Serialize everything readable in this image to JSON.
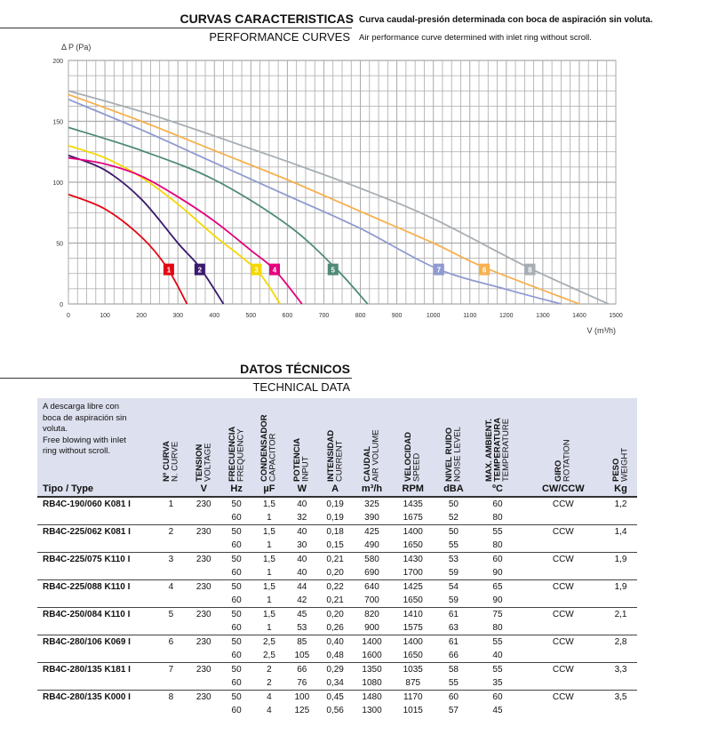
{
  "header": {
    "title_es": "CURVAS CARACTERISTICAS",
    "subtitle_es": "Curva caudal-presión determinada con boca de aspiración sin voluta.",
    "title_en": "PERFORMANCE CURVES",
    "subtitle_en": "Air performance curve determined with inlet ring without scroll."
  },
  "chart_data": {
    "type": "line",
    "xlabel": "V (m³/h)",
    "ylabel": "Δ P (Pa)",
    "xlim": [
      0,
      1500
    ],
    "ylim": [
      0,
      200
    ],
    "xticks": [
      0,
      100,
      200,
      300,
      400,
      500,
      600,
      700,
      800,
      900,
      1000,
      1100,
      1200,
      1300,
      1400,
      1500
    ],
    "yticks": [
      0,
      50,
      100,
      150,
      200
    ],
    "grid": true,
    "series": [
      {
        "name": "1",
        "color": "#e30613",
        "x": [
          0,
          100,
          200,
          270,
          325
        ],
        "y": [
          90,
          78,
          55,
          30,
          0
        ]
      },
      {
        "name": "2",
        "color": "#3c1a6e",
        "x": [
          0,
          100,
          200,
          300,
          360,
          425
        ],
        "y": [
          122,
          110,
          86,
          50,
          30,
          0
        ]
      },
      {
        "name": "3",
        "color": "#f5d800",
        "x": [
          0,
          100,
          200,
          300,
          400,
          515,
          580
        ],
        "y": [
          130,
          120,
          104,
          82,
          56,
          28,
          0
        ]
      },
      {
        "name": "4",
        "color": "#e5007e",
        "x": [
          0,
          100,
          200,
          300,
          400,
          500,
          565,
          640
        ],
        "y": [
          120,
          115,
          105,
          88,
          68,
          44,
          28,
          0
        ]
      },
      {
        "name": "5",
        "color": "#4f8a78",
        "x": [
          0,
          200,
          400,
          600,
          730,
          820
        ],
        "y": [
          145,
          126,
          102,
          65,
          30,
          0
        ]
      },
      {
        "name": "6",
        "color": "#f7b150",
        "x": [
          0,
          200,
          400,
          600,
          800,
          1000,
          1140,
          1400
        ],
        "y": [
          172,
          150,
          126,
          102,
          76,
          50,
          30,
          0
        ]
      },
      {
        "name": "7",
        "color": "#8f9ad0",
        "x": [
          0,
          200,
          400,
          600,
          800,
          1010,
          1200,
          1350
        ],
        "y": [
          168,
          143,
          116,
          89,
          62,
          29,
          12,
          0
        ]
      },
      {
        "name": "8",
        "color": "#a6aeb4",
        "x": [
          0,
          200,
          400,
          600,
          800,
          1000,
          1260,
          1480
        ],
        "y": [
          175,
          158,
          138,
          117,
          95,
          70,
          30,
          0
        ]
      }
    ],
    "label_points": [
      [
        275,
        28
      ],
      [
        360,
        28
      ],
      [
        515,
        28
      ],
      [
        565,
        28
      ],
      [
        725,
        28
      ],
      [
        1140,
        28
      ],
      [
        1015,
        28
      ],
      [
        1265,
        28
      ]
    ]
  },
  "tech": {
    "title_es": "DATOS TÉCNICOS",
    "title_en": "TECHNICAL DATA",
    "note": [
      "A descarga libre con",
      "boca de aspiración sin",
      "voluta.",
      "Free blowing with inlet",
      "ring without scroll."
    ],
    "columns": [
      {
        "es": "Nº CURVA",
        "en": "N. CURVE",
        "unit": ""
      },
      {
        "es": "TENSION",
        "en": "VOLTAGE",
        "unit": "V"
      },
      {
        "es": "FRECUENCIA",
        "en": "FREQUENCY",
        "unit": "Hz"
      },
      {
        "es": "CONDENSADOR",
        "en": "CAPACITOR",
        "unit": "µF"
      },
      {
        "es": "POTENCIA",
        "en": "INPUT",
        "unit": "W"
      },
      {
        "es": "INTENSIDAD",
        "en": "CURRENT",
        "unit": "A"
      },
      {
        "es": "CAUDAL",
        "en": "AIR VOLUME",
        "unit": "m³/h"
      },
      {
        "es": "VELOCIDAD",
        "en": "SPEED",
        "unit": "RPM"
      },
      {
        "es": "NIVEL RUIDO",
        "en": "NOISE LEVEL",
        "unit": "dBA"
      },
      {
        "es": "MAX. AMBIENT. TEMPERATURA",
        "en": "TEMPERATURE",
        "unit": "ºC"
      },
      {
        "es": "GIRO",
        "en": "ROTATION",
        "unit": "CW/CCW"
      },
      {
        "es": "PESO",
        "en": "WEIGHT",
        "unit": "Kg"
      }
    ],
    "type_label": "Tipo / Type",
    "models": [
      {
        "type": "RB4C-190/060 K081 I",
        "curve": "1",
        "voltage": "230",
        "rotation": "CCW",
        "weight": "1,2",
        "rows": [
          [
            "50",
            "1,5",
            "40",
            "0,19",
            "325",
            "1435",
            "50",
            "60"
          ],
          [
            "60",
            "1",
            "32",
            "0,19",
            "390",
            "1675",
            "52",
            "80"
          ]
        ]
      },
      {
        "type": "RB4C-225/062 K081 I",
        "curve": "2",
        "voltage": "230",
        "rotation": "CCW",
        "weight": "1,4",
        "rows": [
          [
            "50",
            "1,5",
            "40",
            "0,18",
            "425",
            "1400",
            "50",
            "55"
          ],
          [
            "60",
            "1",
            "30",
            "0,15",
            "490",
            "1650",
            "55",
            "80"
          ]
        ]
      },
      {
        "type": "RB4C-225/075 K110 I",
        "curve": "3",
        "voltage": "230",
        "rotation": "CCW",
        "weight": "1,9",
        "rows": [
          [
            "50",
            "1,5",
            "40",
            "0,21",
            "580",
            "1430",
            "53",
            "60"
          ],
          [
            "60",
            "1",
            "40",
            "0,20",
            "690",
            "1700",
            "59",
            "90"
          ]
        ]
      },
      {
        "type": "RB4C-225/088 K110 I",
        "curve": "4",
        "voltage": "230",
        "rotation": "CCW",
        "weight": "1,9",
        "rows": [
          [
            "50",
            "1,5",
            "44",
            "0,22",
            "640",
            "1425",
            "54",
            "65"
          ],
          [
            "60",
            "1",
            "42",
            "0,21",
            "700",
            "1650",
            "59",
            "90"
          ]
        ]
      },
      {
        "type": "RB4C-250/084 K110 I",
        "curve": "5",
        "voltage": "230",
        "rotation": "CCW",
        "weight": "2,1",
        "rows": [
          [
            "50",
            "1,5",
            "45",
            "0,20",
            "820",
            "1410",
            "61",
            "75"
          ],
          [
            "60",
            "1",
            "53",
            "0,26",
            "900",
            "1575",
            "63",
            "80"
          ]
        ]
      },
      {
        "type": "RB4C-280/106 K069 I",
        "curve": "6",
        "voltage": "230",
        "rotation": "CCW",
        "weight": "2,8",
        "rows": [
          [
            "50",
            "2,5",
            "85",
            "0,40",
            "1400",
            "1400",
            "61",
            "55"
          ],
          [
            "60",
            "2,5",
            "105",
            "0,48",
            "1600",
            "1650",
            "66",
            "40"
          ]
        ]
      },
      {
        "type": "RB4C-280/135 K181 I",
        "curve": "7",
        "voltage": "230",
        "rotation": "CCW",
        "weight": "3,3",
        "rows": [
          [
            "50",
            "2",
            "66",
            "0,29",
            "1350",
            "1035",
            "58",
            "55"
          ],
          [
            "60",
            "2",
            "76",
            "0,34",
            "1080",
            "875",
            "55",
            "35"
          ]
        ]
      },
      {
        "type": "RB4C-280/135 K000 I",
        "curve": "8",
        "voltage": "230",
        "rotation": "CCW",
        "weight": "3,5",
        "rows": [
          [
            "50",
            "4",
            "100",
            "0,45",
            "1480",
            "1170",
            "60",
            "60"
          ],
          [
            "60",
            "4",
            "125",
            "0,56",
            "1300",
            "1015",
            "57",
            "45"
          ]
        ]
      }
    ]
  }
}
